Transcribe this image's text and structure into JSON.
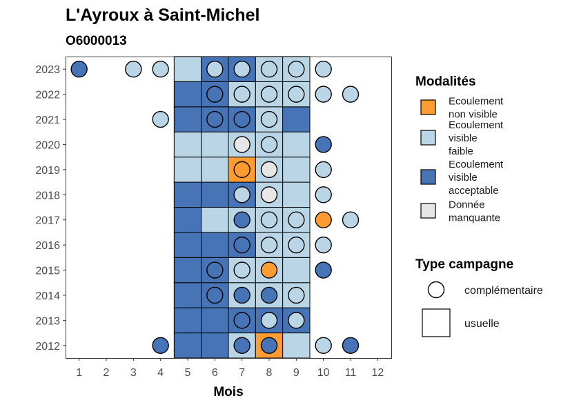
{
  "chart_data": {
    "type": "heatmap",
    "title": "L'Ayroux à Saint-Michel",
    "subtitle": "O6000013",
    "xlabel": "Mois",
    "ylabel": "",
    "x_ticks": [
      "1",
      "2",
      "3",
      "4",
      "5",
      "6",
      "7",
      "8",
      "9",
      "10",
      "11",
      "12"
    ],
    "y_ticks": [
      "2012",
      "2013",
      "2014",
      "2015",
      "2016",
      "2017",
      "2018",
      "2019",
      "2020",
      "2021",
      "2022",
      "2023"
    ],
    "colors": {
      "ecoulement_non_visible": "#fe9c32",
      "ecoulement_visible_faible": "#bad6e6",
      "ecoulement_visible_acceptable": "#4674b6",
      "donnee_manquante": "#e6e6e6"
    },
    "legend_modalites": {
      "title": "Modalités",
      "items": [
        {
          "key": "ecoulement_non_visible",
          "lines": [
            "Ecoulement",
            "non visible"
          ]
        },
        {
          "key": "ecoulement_visible_faible",
          "lines": [
            "Ecoulement",
            "visible",
            "faible"
          ]
        },
        {
          "key": "ecoulement_visible_acceptable",
          "lines": [
            "Ecoulement",
            "visible",
            "acceptable"
          ]
        },
        {
          "key": "donnee_manquante",
          "lines": [
            "Donnée",
            "manquante"
          ]
        }
      ]
    },
    "legend_type": {
      "title": "Type campagne",
      "items": [
        {
          "shape": "circle",
          "label": "complémentaire"
        },
        {
          "shape": "square",
          "label": "usuelle"
        }
      ]
    },
    "usuelle": [
      {
        "year": "2012",
        "month": 5,
        "value": "ecoulement_visible_acceptable"
      },
      {
        "year": "2012",
        "month": 6,
        "value": "ecoulement_visible_acceptable"
      },
      {
        "year": "2012",
        "month": 7,
        "value": "ecoulement_visible_faible"
      },
      {
        "year": "2012",
        "month": 8,
        "value": "ecoulement_non_visible"
      },
      {
        "year": "2012",
        "month": 9,
        "value": "ecoulement_visible_faible"
      },
      {
        "year": "2013",
        "month": 5,
        "value": "ecoulement_visible_acceptable"
      },
      {
        "year": "2013",
        "month": 6,
        "value": "ecoulement_visible_acceptable"
      },
      {
        "year": "2013",
        "month": 7,
        "value": "ecoulement_visible_acceptable"
      },
      {
        "year": "2013",
        "month": 8,
        "value": "ecoulement_visible_acceptable"
      },
      {
        "year": "2013",
        "month": 9,
        "value": "ecoulement_visible_acceptable"
      },
      {
        "year": "2014",
        "month": 5,
        "value": "ecoulement_visible_acceptable"
      },
      {
        "year": "2014",
        "month": 6,
        "value": "ecoulement_visible_acceptable"
      },
      {
        "year": "2014",
        "month": 7,
        "value": "ecoulement_visible_faible"
      },
      {
        "year": "2014",
        "month": 8,
        "value": "ecoulement_visible_faible"
      },
      {
        "year": "2014",
        "month": 9,
        "value": "ecoulement_visible_faible"
      },
      {
        "year": "2015",
        "month": 5,
        "value": "ecoulement_visible_acceptable"
      },
      {
        "year": "2015",
        "month": 6,
        "value": "ecoulement_visible_acceptable"
      },
      {
        "year": "2015",
        "month": 7,
        "value": "ecoulement_visible_faible"
      },
      {
        "year": "2015",
        "month": 8,
        "value": "ecoulement_visible_faible"
      },
      {
        "year": "2015",
        "month": 9,
        "value": "ecoulement_visible_faible"
      },
      {
        "year": "2016",
        "month": 5,
        "value": "ecoulement_visible_acceptable"
      },
      {
        "year": "2016",
        "month": 6,
        "value": "ecoulement_visible_acceptable"
      },
      {
        "year": "2016",
        "month": 7,
        "value": "ecoulement_visible_acceptable"
      },
      {
        "year": "2016",
        "month": 8,
        "value": "ecoulement_visible_faible"
      },
      {
        "year": "2016",
        "month": 9,
        "value": "ecoulement_visible_faible"
      },
      {
        "year": "2017",
        "month": 5,
        "value": "ecoulement_visible_acceptable"
      },
      {
        "year": "2017",
        "month": 6,
        "value": "ecoulement_visible_faible"
      },
      {
        "year": "2017",
        "month": 7,
        "value": "ecoulement_visible_faible"
      },
      {
        "year": "2017",
        "month": 8,
        "value": "ecoulement_visible_faible"
      },
      {
        "year": "2017",
        "month": 9,
        "value": "ecoulement_visible_faible"
      },
      {
        "year": "2018",
        "month": 5,
        "value": "ecoulement_visible_acceptable"
      },
      {
        "year": "2018",
        "month": 6,
        "value": "ecoulement_visible_acceptable"
      },
      {
        "year": "2018",
        "month": 7,
        "value": "ecoulement_visible_acceptable"
      },
      {
        "year": "2018",
        "month": 8,
        "value": "ecoulement_visible_faible"
      },
      {
        "year": "2018",
        "month": 9,
        "value": "ecoulement_visible_faible"
      },
      {
        "year": "2019",
        "month": 5,
        "value": "ecoulement_visible_faible"
      },
      {
        "year": "2019",
        "month": 6,
        "value": "ecoulement_visible_faible"
      },
      {
        "year": "2019",
        "month": 7,
        "value": "ecoulement_non_visible"
      },
      {
        "year": "2019",
        "month": 8,
        "value": "ecoulement_visible_faible"
      },
      {
        "year": "2019",
        "month": 9,
        "value": "ecoulement_visible_faible"
      },
      {
        "year": "2020",
        "month": 5,
        "value": "ecoulement_visible_faible"
      },
      {
        "year": "2020",
        "month": 6,
        "value": "ecoulement_visible_faible"
      },
      {
        "year": "2020",
        "month": 7,
        "value": "ecoulement_visible_faible"
      },
      {
        "year": "2020",
        "month": 8,
        "value": "ecoulement_visible_faible"
      },
      {
        "year": "2020",
        "month": 9,
        "value": "ecoulement_visible_faible"
      },
      {
        "year": "2021",
        "month": 5,
        "value": "ecoulement_visible_acceptable"
      },
      {
        "year": "2021",
        "month": 6,
        "value": "ecoulement_visible_acceptable"
      },
      {
        "year": "2021",
        "month": 7,
        "value": "ecoulement_visible_acceptable"
      },
      {
        "year": "2021",
        "month": 8,
        "value": "ecoulement_visible_faible"
      },
      {
        "year": "2021",
        "month": 9,
        "value": "ecoulement_visible_acceptable"
      },
      {
        "year": "2022",
        "month": 5,
        "value": "ecoulement_visible_acceptable"
      },
      {
        "year": "2022",
        "month": 6,
        "value": "ecoulement_visible_acceptable"
      },
      {
        "year": "2022",
        "month": 7,
        "value": "ecoulement_visible_faible"
      },
      {
        "year": "2022",
        "month": 8,
        "value": "ecoulement_visible_faible"
      },
      {
        "year": "2022",
        "month": 9,
        "value": "ecoulement_visible_faible"
      },
      {
        "year": "2023",
        "month": 5,
        "value": "ecoulement_visible_faible"
      },
      {
        "year": "2023",
        "month": 6,
        "value": "ecoulement_visible_acceptable"
      },
      {
        "year": "2023",
        "month": 7,
        "value": "ecoulement_visible_acceptable"
      },
      {
        "year": "2023",
        "month": 8,
        "value": "ecoulement_visible_faible"
      },
      {
        "year": "2023",
        "month": 9,
        "value": "ecoulement_visible_faible"
      }
    ],
    "complementaire": [
      {
        "year": "2012",
        "month": 4,
        "value": "ecoulement_visible_acceptable"
      },
      {
        "year": "2012",
        "month": 7,
        "value": "ecoulement_visible_acceptable"
      },
      {
        "year": "2012",
        "month": 8,
        "value": "ecoulement_visible_acceptable"
      },
      {
        "year": "2012",
        "month": 10,
        "value": "ecoulement_visible_faible"
      },
      {
        "year": "2012",
        "month": 11,
        "value": "ecoulement_visible_acceptable"
      },
      {
        "year": "2013",
        "month": 7,
        "value": "ecoulement_visible_acceptable"
      },
      {
        "year": "2013",
        "month": 8,
        "value": "ecoulement_visible_faible"
      },
      {
        "year": "2013",
        "month": 9,
        "value": "ecoulement_visible_faible"
      },
      {
        "year": "2014",
        "month": 6,
        "value": "ecoulement_visible_acceptable"
      },
      {
        "year": "2014",
        "month": 7,
        "value": "ecoulement_visible_acceptable"
      },
      {
        "year": "2014",
        "month": 8,
        "value": "ecoulement_visible_acceptable"
      },
      {
        "year": "2014",
        "month": 9,
        "value": "ecoulement_visible_faible"
      },
      {
        "year": "2015",
        "month": 6,
        "value": "ecoulement_visible_acceptable"
      },
      {
        "year": "2015",
        "month": 7,
        "value": "ecoulement_visible_faible"
      },
      {
        "year": "2015",
        "month": 8,
        "value": "ecoulement_non_visible"
      },
      {
        "year": "2015",
        "month": 10,
        "value": "ecoulement_visible_acceptable"
      },
      {
        "year": "2016",
        "month": 7,
        "value": "ecoulement_visible_acceptable"
      },
      {
        "year": "2016",
        "month": 8,
        "value": "ecoulement_visible_faible"
      },
      {
        "year": "2016",
        "month": 9,
        "value": "ecoulement_visible_faible"
      },
      {
        "year": "2016",
        "month": 10,
        "value": "ecoulement_visible_faible"
      },
      {
        "year": "2017",
        "month": 7,
        "value": "ecoulement_visible_acceptable"
      },
      {
        "year": "2017",
        "month": 8,
        "value": "ecoulement_visible_faible"
      },
      {
        "year": "2017",
        "month": 9,
        "value": "ecoulement_visible_faible"
      },
      {
        "year": "2017",
        "month": 10,
        "value": "ecoulement_non_visible"
      },
      {
        "year": "2017",
        "month": 11,
        "value": "ecoulement_visible_faible"
      },
      {
        "year": "2018",
        "month": 7,
        "value": "ecoulement_visible_faible"
      },
      {
        "year": "2018",
        "month": 8,
        "value": "donnee_manquante"
      },
      {
        "year": "2018",
        "month": 10,
        "value": "ecoulement_visible_faible"
      },
      {
        "year": "2019",
        "month": 7,
        "value": "ecoulement_non_visible"
      },
      {
        "year": "2019",
        "month": 8,
        "value": "donnee_manquante"
      },
      {
        "year": "2019",
        "month": 10,
        "value": "ecoulement_visible_faible"
      },
      {
        "year": "2020",
        "month": 7,
        "value": "donnee_manquante"
      },
      {
        "year": "2020",
        "month": 8,
        "value": "ecoulement_visible_faible"
      },
      {
        "year": "2020",
        "month": 10,
        "value": "ecoulement_visible_acceptable"
      },
      {
        "year": "2021",
        "month": 4,
        "value": "ecoulement_visible_faible"
      },
      {
        "year": "2021",
        "month": 6,
        "value": "ecoulement_visible_acceptable"
      },
      {
        "year": "2021",
        "month": 7,
        "value": "ecoulement_visible_acceptable"
      },
      {
        "year": "2021",
        "month": 8,
        "value": "ecoulement_visible_faible"
      },
      {
        "year": "2022",
        "month": 6,
        "value": "ecoulement_visible_acceptable"
      },
      {
        "year": "2022",
        "month": 7,
        "value": "ecoulement_visible_faible"
      },
      {
        "year": "2022",
        "month": 8,
        "value": "ecoulement_visible_faible"
      },
      {
        "year": "2022",
        "month": 9,
        "value": "ecoulement_visible_faible"
      },
      {
        "year": "2022",
        "month": 10,
        "value": "ecoulement_visible_faible"
      },
      {
        "year": "2022",
        "month": 11,
        "value": "ecoulement_visible_faible"
      },
      {
        "year": "2023",
        "month": 1,
        "value": "ecoulement_visible_acceptable"
      },
      {
        "year": "2023",
        "month": 3,
        "value": "ecoulement_visible_faible"
      },
      {
        "year": "2023",
        "month": 4,
        "value": "ecoulement_visible_faible"
      },
      {
        "year": "2023",
        "month": 6,
        "value": "ecoulement_visible_faible"
      },
      {
        "year": "2023",
        "month": 7,
        "value": "ecoulement_visible_faible"
      },
      {
        "year": "2023",
        "month": 8,
        "value": "ecoulement_visible_faible"
      },
      {
        "year": "2023",
        "month": 9,
        "value": "ecoulement_visible_faible"
      },
      {
        "year": "2023",
        "month": 10,
        "value": "ecoulement_visible_faible"
      }
    ]
  }
}
